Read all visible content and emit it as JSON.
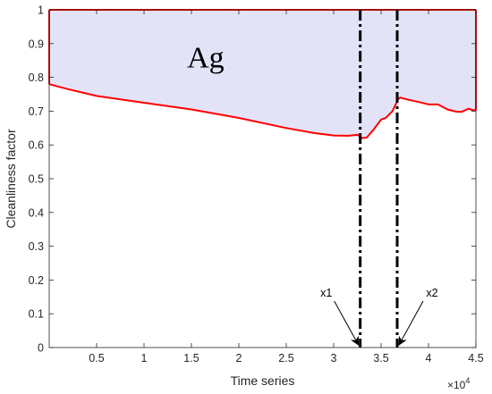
{
  "chart_data": {
    "type": "area",
    "title": "",
    "xlabel": "Time series",
    "ylabel": "Cleanliness factor",
    "xlim": [
      0,
      4.5
    ],
    "ylim": [
      0,
      1
    ],
    "x_multiplier_label": "×10",
    "x_multiplier_exponent": "4",
    "x_ticks": [
      0.5,
      1,
      1.5,
      2,
      2.5,
      3,
      3.5,
      4,
      4.5
    ],
    "x_tick_labels": [
      "0.5",
      "1",
      "1.5",
      "2",
      "2.5",
      "3",
      "3.5",
      "4",
      "4.5"
    ],
    "y_ticks": [
      0,
      0.1,
      0.2,
      0.3,
      0.4,
      0.5,
      0.6,
      0.7,
      0.8,
      0.9,
      1
    ],
    "y_tick_labels": [
      "0",
      "0.1",
      "0.2",
      "0.3",
      "0.4",
      "0.5",
      "0.6",
      "0.7",
      "0.8",
      "0.9",
      "1"
    ],
    "grid": false,
    "series": [
      {
        "x": [
          0,
          0.2,
          0.5,
          1.0,
          1.5,
          2.0,
          2.5,
          2.8,
          3.0,
          3.15,
          3.25,
          3.3,
          3.35,
          3.42,
          3.5,
          3.55,
          3.62,
          3.68,
          3.7,
          3.8,
          3.9,
          4.0,
          4.1,
          4.2,
          4.3,
          4.35,
          4.42,
          4.47,
          4.5
        ],
        "y": [
          0.78,
          0.765,
          0.745,
          0.725,
          0.705,
          0.68,
          0.65,
          0.635,
          0.628,
          0.627,
          0.63,
          0.62,
          0.622,
          0.645,
          0.675,
          0.68,
          0.7,
          0.735,
          0.74,
          0.733,
          0.727,
          0.72,
          0.72,
          0.705,
          0.698,
          0.698,
          0.707,
          0.703,
          0.703
        ]
      }
    ],
    "upper_bound": 1,
    "fill_color": "#e3e3f8",
    "line_color": "#ff0000",
    "annotations": [
      {
        "text": "Ag",
        "x": 1.65,
        "y": 0.83
      },
      {
        "text": "x1",
        "marker_x": 3.28
      },
      {
        "text": "x2",
        "marker_x": 3.67
      }
    ]
  }
}
